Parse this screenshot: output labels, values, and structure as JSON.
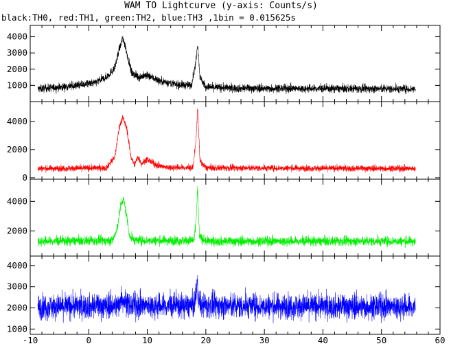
{
  "title": "WAM TO Lightcurve (y-axis: Counts/s)",
  "subtitle": "black:TH0, red:TH1, green:TH2, blue:TH3 ,1bin = 0.015625s",
  "chart_data": {
    "type": "line",
    "title": "WAM TO Lightcurve (y-axis: Counts/s)",
    "subtitle": "black:TH0, red:TH1, green:TH2, blue:TH3 ,1bin = 0.015625s",
    "xlabel": "",
    "ylabel": "Counts/s",
    "x_range": [
      -10,
      60
    ],
    "x_ticks": [
      "-10",
      "0",
      "10",
      "20",
      "30",
      "40",
      "50",
      "60"
    ],
    "x_data_range": [
      -8.7,
      55.8
    ],
    "bin_seconds": 0.015625,
    "grid": false,
    "panels": [
      {
        "name": "TH0",
        "color": "#000000",
        "ylim": [
          0,
          4700
        ],
        "y_ticks": [
          "1000",
          "2000",
          "3000",
          "4000"
        ],
        "y_tick_values": [
          1000,
          2000,
          3000,
          4000
        ],
        "baseline": 780,
        "noise": 180,
        "profile": [
          [
            -8.7,
            780
          ],
          [
            -3,
            950
          ],
          [
            -1,
            1050
          ],
          [
            1,
            1150
          ],
          [
            3,
            1500
          ],
          [
            4.5,
            2100
          ],
          [
            5.2,
            3200
          ],
          [
            5.8,
            3900
          ],
          [
            6.2,
            3500
          ],
          [
            6.7,
            2700
          ],
          [
            7.3,
            1800
          ],
          [
            8.5,
            1500
          ],
          [
            9.5,
            1600
          ],
          [
            10.5,
            1550
          ],
          [
            12,
            1300
          ],
          [
            15,
            1050
          ],
          [
            17.5,
            1000
          ],
          [
            18.2,
            2200
          ],
          [
            18.6,
            3600
          ],
          [
            19.0,
            1500
          ],
          [
            20,
            900
          ],
          [
            25,
            820
          ],
          [
            40,
            800
          ],
          [
            55.8,
            780
          ]
        ]
      },
      {
        "name": "TH1",
        "color": "#ff0000",
        "ylim": [
          -100,
          5400
        ],
        "y_ticks": [
          "0",
          "2000",
          "4000"
        ],
        "y_tick_values": [
          0,
          2000,
          4000
        ],
        "baseline": 650,
        "noise": 160,
        "profile": [
          [
            -8.7,
            650
          ],
          [
            3,
            700
          ],
          [
            4.5,
            1500
          ],
          [
            5.2,
            3600
          ],
          [
            5.8,
            4300
          ],
          [
            6.5,
            3500
          ],
          [
            7.2,
            1500
          ],
          [
            7.8,
            900
          ],
          [
            8.4,
            1500
          ],
          [
            9,
            1000
          ],
          [
            10,
            1300
          ],
          [
            11.5,
            900
          ],
          [
            13,
            750
          ],
          [
            17.8,
            700
          ],
          [
            18.3,
            2500
          ],
          [
            18.6,
            5000
          ],
          [
            19.0,
            1200
          ],
          [
            20,
            700
          ],
          [
            55.8,
            650
          ]
        ]
      },
      {
        "name": "TH2",
        "color": "#00ee00",
        "ylim": [
          300,
          5500
        ],
        "y_ticks": [
          "2000",
          "4000"
        ],
        "y_tick_values": [
          2000,
          4000
        ],
        "baseline": 1300,
        "noise": 230,
        "profile": [
          [
            -8.7,
            1300
          ],
          [
            4,
            1350
          ],
          [
            4.8,
            2000
          ],
          [
            5.4,
            3600
          ],
          [
            5.9,
            4200
          ],
          [
            6.5,
            3000
          ],
          [
            7.0,
            1600
          ],
          [
            8,
            1350
          ],
          [
            18,
            1350
          ],
          [
            18.4,
            3200
          ],
          [
            18.6,
            4900
          ],
          [
            18.9,
            1600
          ],
          [
            20,
            1300
          ],
          [
            55.8,
            1300
          ]
        ]
      },
      {
        "name": "TH3",
        "color": "#0000ff",
        "ylim": [
          750,
          4450
        ],
        "y_ticks": [
          "1000",
          "2000",
          "3000",
          "4000"
        ],
        "y_tick_values": [
          1000,
          2000,
          3000,
          4000
        ],
        "baseline": 2050,
        "noise": 420,
        "profile": [
          [
            -8.7,
            2050
          ],
          [
            5,
            2100
          ],
          [
            5.6,
            2500
          ],
          [
            6.2,
            2300
          ],
          [
            7,
            2100
          ],
          [
            18,
            2100
          ],
          [
            18.5,
            3200
          ],
          [
            18.7,
            2500
          ],
          [
            19.2,
            2100
          ],
          [
            55.8,
            2050
          ]
        ]
      }
    ]
  }
}
